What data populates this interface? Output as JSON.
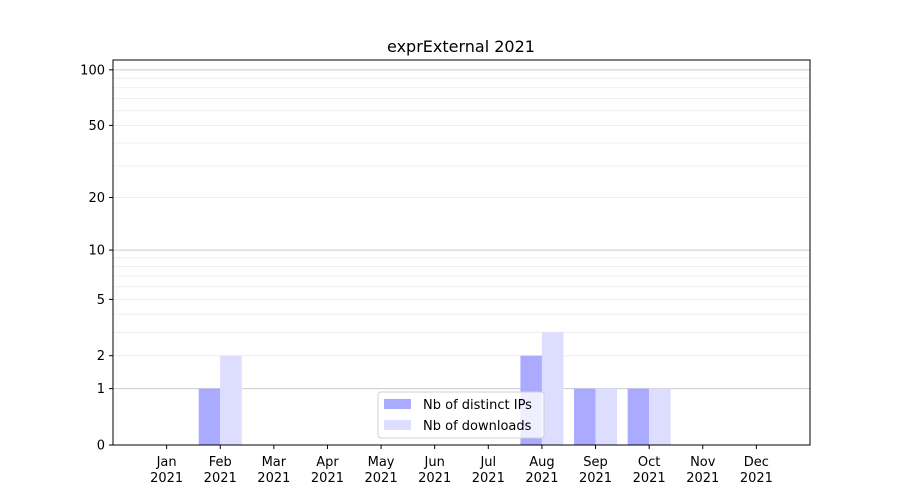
{
  "chart_data": {
    "type": "bar",
    "title": "exprExternal 2021",
    "xlabel": "",
    "ylabel": "",
    "yscale": "log(1+y)",
    "ylim": [
      0,
      113
    ],
    "yticks": [
      0,
      1,
      2,
      5,
      10,
      20,
      50,
      100
    ],
    "grid": "horizontal, major and minor",
    "legend_position": "bottom-center",
    "categories": [
      "Jan\n2021",
      "Feb\n2021",
      "Mar\n2021",
      "Apr\n2021",
      "May\n2021",
      "Jun\n2021",
      "Jul\n2021",
      "Aug\n2021",
      "Sep\n2021",
      "Oct\n2021",
      "Nov\n2021",
      "Dec\n2021"
    ],
    "series": [
      {
        "name": "Nb of distinct IPs",
        "color": "#aaaaff",
        "values": [
          0,
          1,
          0,
          0,
          0,
          0,
          0,
          2,
          1,
          1,
          0,
          0
        ]
      },
      {
        "name": "Nb of downloads",
        "color": "#ddddff",
        "values": [
          0,
          2,
          0,
          0,
          0,
          0,
          0,
          3,
          1,
          1,
          0,
          0
        ]
      }
    ]
  }
}
